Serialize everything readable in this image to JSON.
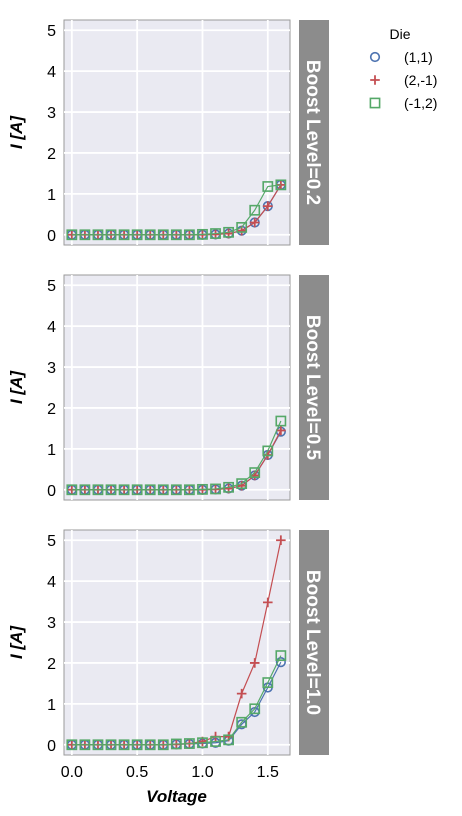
{
  "chart_data": {
    "type": "line",
    "xlabel": "Voltage",
    "ylabel": "I [A]",
    "xlim": [
      -0.06,
      1.67
    ],
    "ylim": [
      -0.25,
      5.25
    ],
    "x_ticks": [
      0.0,
      0.5,
      1.0,
      1.5
    ],
    "x_tick_labels": [
      "0.0",
      "0.5",
      "1.0",
      "1.5"
    ],
    "y_ticks": [
      0,
      1,
      2,
      3,
      4,
      5
    ],
    "y_tick_labels": [
      "0",
      "1",
      "2",
      "3",
      "4",
      "5"
    ],
    "grid": true,
    "legend": {
      "title": "Die",
      "placement": "top-right outside",
      "entries": [
        {
          "label": "(1,1)",
          "marker": "circle",
          "color": "#4C72B0"
        },
        {
          "label": "(2,-1)",
          "marker": "plus",
          "color": "#C44E52"
        },
        {
          "label": "(-1,2)",
          "marker": "square",
          "color": "#55A868"
        }
      ]
    },
    "x": [
      0.0,
      0.1,
      0.2,
      0.3,
      0.4,
      0.5,
      0.6,
      0.7,
      0.8,
      0.9,
      1.0,
      1.1,
      1.2,
      1.3,
      1.4,
      1.5,
      1.6
    ],
    "panels": [
      {
        "label": "Boost Level=0.2",
        "series": [
          {
            "name": "(1,1)",
            "values": [
              0,
              0,
              0,
              0,
              0,
              0,
              0,
              0,
              0,
              0,
              0,
              0.01,
              0.03,
              0.1,
              0.3,
              0.7,
              1.22
            ]
          },
          {
            "name": "(2,-1)",
            "values": [
              0,
              0,
              0,
              0,
              0,
              0,
              0,
              0,
              0,
              0,
              0,
              0.01,
              0.03,
              0.1,
              0.3,
              0.7,
              1.22
            ]
          },
          {
            "name": "(-1,2)",
            "values": [
              0,
              0,
              0,
              0,
              0,
              0,
              0,
              0,
              0,
              0,
              0.01,
              0.03,
              0.06,
              0.18,
              0.6,
              1.18,
              1.22
            ]
          }
        ]
      },
      {
        "label": "Boost Level=0.5",
        "series": [
          {
            "name": "(1,1)",
            "values": [
              0,
              0,
              0,
              0,
              0,
              0,
              0,
              0,
              0,
              0,
              0,
              0.01,
              0.03,
              0.1,
              0.35,
              0.85,
              1.42
            ]
          },
          {
            "name": "(2,-1)",
            "values": [
              0,
              0,
              0,
              0,
              0,
              0,
              0,
              0,
              0,
              0,
              0,
              0.01,
              0.03,
              0.1,
              0.35,
              0.85,
              1.45
            ]
          },
          {
            "name": "(-1,2)",
            "values": [
              0,
              0,
              0,
              0,
              0,
              0,
              0,
              0,
              0,
              0,
              0.01,
              0.02,
              0.06,
              0.15,
              0.42,
              0.95,
              1.68
            ]
          }
        ]
      },
      {
        "label": "Boost Level=1.0",
        "series": [
          {
            "name": "(1,1)",
            "values": [
              0,
              0,
              0,
              0,
              0,
              0,
              0,
              0,
              0.01,
              0.02,
              0.03,
              0.05,
              0.1,
              0.5,
              0.8,
              1.4,
              2.02
            ]
          },
          {
            "name": "(2,-1)",
            "values": [
              0,
              0,
              0,
              0,
              0,
              0,
              0,
              0,
              0.01,
              0.03,
              0.08,
              0.2,
              0.2,
              1.25,
              2.0,
              3.48,
              5.0
            ]
          },
          {
            "name": "(-1,2)",
            "values": [
              0,
              0,
              0,
              0,
              0,
              0,
              0,
              0,
              0.02,
              0.03,
              0.05,
              0.08,
              0.12,
              0.55,
              0.88,
              1.52,
              2.18
            ]
          }
        ]
      }
    ]
  }
}
